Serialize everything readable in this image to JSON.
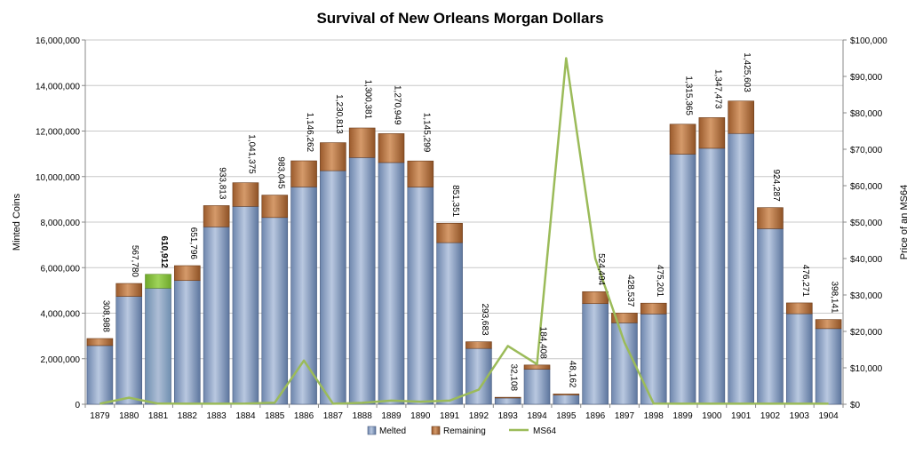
{
  "chart_data": {
    "type": "bar",
    "stacked": true,
    "title": "Survival of New Orleans Morgan Dollars",
    "ylabel": "Minted Coins",
    "y2label": "Price of an MS64",
    "ylim": [
      0,
      16000000
    ],
    "y2lim": [
      0,
      100000
    ],
    "grid": true,
    "legend_position": "bottom",
    "categories": [
      "1879",
      "1880",
      "1881",
      "1882",
      "1883",
      "1884",
      "1885",
      "1886",
      "1887",
      "1888",
      "1889",
      "1890",
      "1891",
      "1892",
      "1893",
      "1894",
      "1895",
      "1896",
      "1897",
      "1898",
      "1899",
      "1900",
      "1901",
      "1902",
      "1903",
      "1904"
    ],
    "yticks": [
      "0",
      "2,000,000",
      "4,000,000",
      "6,000,000",
      "8,000,000",
      "10,000,000",
      "12,000,000",
      "14,000,000",
      "16,000,000"
    ],
    "y2ticks": [
      "$0",
      "$10,000",
      "$20,000",
      "$30,000",
      "$40,000",
      "$50,000",
      "$60,000",
      "$70,000",
      "$80,000",
      "$90,000",
      "$100,000"
    ],
    "series": [
      {
        "name": "Melted",
        "kind": "bar",
        "color": "#8fa4c6",
        "values": [
          2578000,
          4738000,
          5097000,
          5436000,
          7791000,
          8689000,
          8203000,
          9546000,
          10259000,
          10836000,
          10616000,
          9541000,
          7098000,
          2451000,
          275000,
          1539000,
          402000,
          4421000,
          3576000,
          3966000,
          10985000,
          11243000,
          11893000,
          7712000,
          3975000,
          3323000
        ]
      },
      {
        "name": "Remaining",
        "kind": "bar",
        "color": "#b8784a",
        "values": [
          308988,
          567780,
          610912,
          651796,
          933813,
          1041375,
          983045,
          1146262,
          1230813,
          1300381,
          1270949,
          1145299,
          851351,
          293683,
          32108,
          184408,
          48162,
          524494,
          428537,
          475201,
          1315365,
          1347473,
          1425603,
          924287,
          476271,
          398141
        ]
      },
      {
        "name": "MS64",
        "kind": "line",
        "axis": "right",
        "color": "#9bbb59",
        "values": [
          150,
          1800,
          175,
          150,
          150,
          200,
          450,
          12000,
          150,
          400,
          1000,
          700,
          1000,
          4000,
          16000,
          11000,
          95000,
          40000,
          17000,
          160,
          150,
          150,
          150,
          150,
          150,
          150
        ]
      }
    ],
    "highlight": {
      "category": "1881",
      "color": "#8cc43e"
    },
    "data_labels": [
      "308,988",
      "567,780",
      "610,912",
      "651,796",
      "933,813",
      "1,041,375",
      "983,045",
      "1,146,262",
      "1,230,813",
      "1,300,381",
      "1,270,949",
      "1,145,299",
      "851,351",
      "293,683",
      "32,108",
      "184,408",
      "48,162",
      "524,494",
      "428,537",
      "475,201",
      "1,315,365",
      "1,347,473",
      "1,425,603",
      "924,287",
      "476,271",
      "398,141"
    ],
    "bold_label_index": 2
  }
}
